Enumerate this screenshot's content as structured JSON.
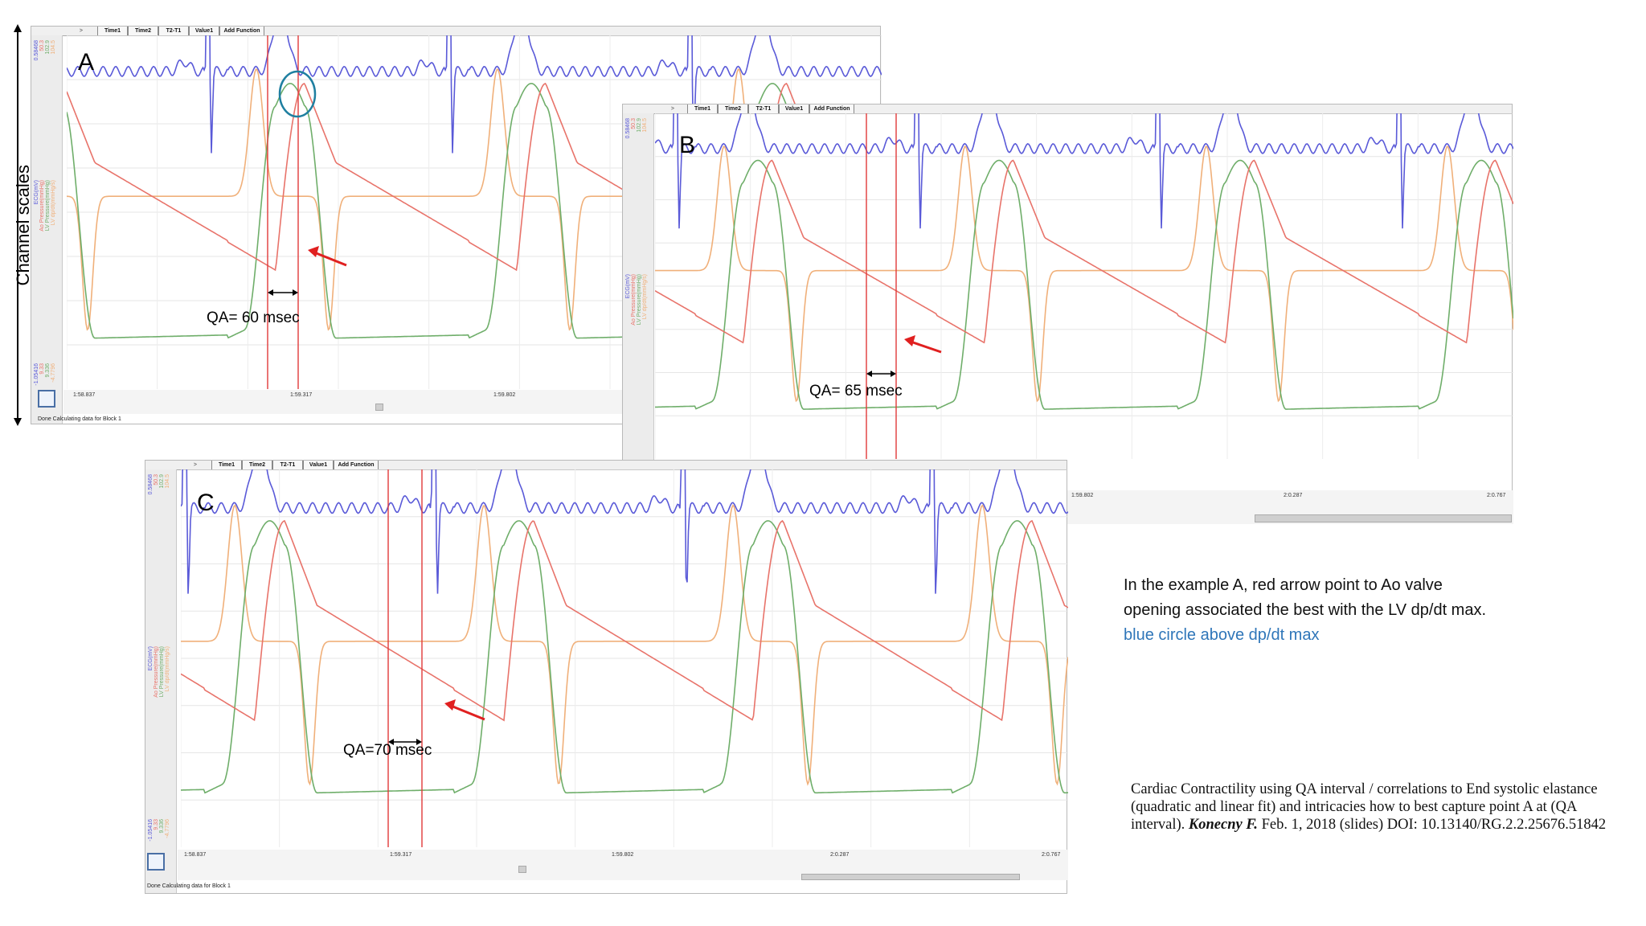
{
  "toolbar": {
    "arrow": ">",
    "buttons": [
      "Time1",
      "Time2",
      "T2-T1",
      "Value1",
      "Add Function"
    ]
  },
  "side_axis_label": "Channel scales",
  "channel_scale_labels": {
    "top": [
      "0.58468",
      "50.3",
      "102.9",
      "104.5"
    ],
    "channels": [
      "ECG(mV)",
      "Ao Pressure(mmHg)",
      "LV Pressure(mmHg)",
      "LV dp/dt(mmHg/s)"
    ],
    "bottom": [
      "-1.05416",
      "9.33",
      "9.336",
      "-4.7796"
    ]
  },
  "colors": {
    "ecg": "#5a5ad8",
    "ao_pressure": "#e8736a",
    "lv_pressure": "#6fae6a",
    "lv_dpdt": "#f0b07a",
    "marker": "#e03a3a",
    "annotation_arrow": "#e02020",
    "circle": "#1f7fa0",
    "caption_blue": "#2f76b9"
  },
  "panels": [
    {
      "letter": "A",
      "qa_label": "QA= 60 msec",
      "time_ticks": [
        "1:58.837",
        "1:59.317",
        "1:59.802"
      ],
      "status": "Done Calculating data for Block 1",
      "highlight_circle": true
    },
    {
      "letter": "B",
      "qa_label": "QA= 65 msec",
      "time_ticks": [
        "1:59.802",
        "2:0.287",
        "2:0.767"
      ],
      "status": "",
      "highlight_circle": false
    },
    {
      "letter": "C",
      "qa_label": "QA=70 msec",
      "time_ticks": [
        "1:58.837",
        "1:59.317",
        "1:59.802",
        "2:0.287",
        "2:0.767"
      ],
      "status": "Done Calculating data for Block 1",
      "highlight_circle": false
    }
  ],
  "caption": {
    "line1": "In the example A, red arrow point to Ao valve",
    "line2": "opening associated the best with the LV dp/dt max.",
    "line3": "blue circle above dp/dt max"
  },
  "citation": {
    "text_before": "Cardiac Contractility using QA interval / correlations to End systolic elastance (quadratic and linear fit) and intricacies how to best capture point A at (QA interval).",
    "author": "Konecny F.",
    "text_after": "Feb. 1, 2018 (slides) DOI: 10.13140/RG.2.2.25676.51842"
  }
}
